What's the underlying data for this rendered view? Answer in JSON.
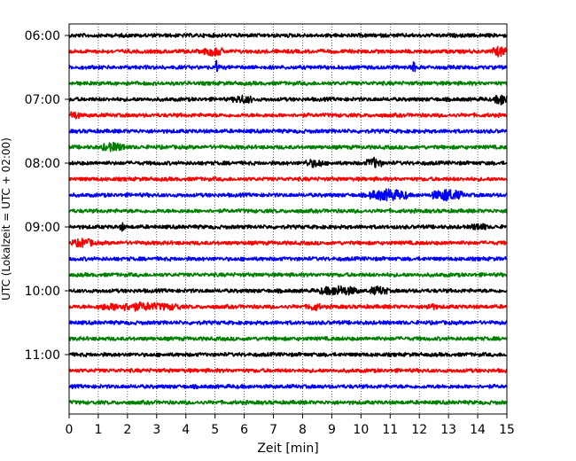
{
  "chart_data": {
    "type": "line",
    "title": "",
    "xlabel": "Zeit  [min]",
    "ylabel": "UTC (Lokalzeit = UTC + 02:00)",
    "xlim": [
      0,
      15
    ],
    "x_ticks": [
      0,
      1,
      2,
      3,
      4,
      5,
      6,
      7,
      8,
      9,
      10,
      11,
      12,
      13,
      14,
      15
    ],
    "y_tick_labels": [
      "06:00",
      "07:00",
      "08:00",
      "09:00",
      "10:00",
      "11:00"
    ],
    "y_tick_rows": [
      0,
      4,
      8,
      12,
      16,
      20
    ],
    "grid": "vertical dotted lines at each minute",
    "trace_colors": [
      "#000000",
      "#ff0000",
      "#0000ff",
      "#008000"
    ],
    "trace_start_times": [
      "06:00",
      "06:15",
      "06:30",
      "06:45",
      "07:00",
      "07:15",
      "07:30",
      "07:45",
      "08:00",
      "08:15",
      "08:30",
      "08:45",
      "09:00",
      "09:15",
      "09:30",
      "09:45",
      "10:00",
      "10:15",
      "10:30",
      "10:45",
      "11:00",
      "11:15",
      "11:30",
      "11:45"
    ],
    "trace_duration_min": 15,
    "events": [
      {
        "row": 1,
        "minute_from": 4.6,
        "minute_to": 5.3,
        "level": 0.35
      },
      {
        "row": 1,
        "minute_from": 14.5,
        "minute_to": 15.0,
        "level": 0.45
      },
      {
        "row": 2,
        "minute_from": 5.0,
        "minute_to": 5.15,
        "level": 0.9
      },
      {
        "row": 2,
        "minute_from": 11.7,
        "minute_to": 11.85,
        "level": 0.6
      },
      {
        "row": 4,
        "minute_from": 5.6,
        "minute_to": 6.3,
        "level": 0.3
      },
      {
        "row": 4,
        "minute_from": 14.6,
        "minute_to": 15.0,
        "level": 0.55
      },
      {
        "row": 5,
        "minute_from": 0.0,
        "minute_to": 0.35,
        "level": 0.3
      },
      {
        "row": 7,
        "minute_from": 1.1,
        "minute_to": 1.9,
        "level": 0.35
      },
      {
        "row": 8,
        "minute_from": 8.1,
        "minute_to": 8.7,
        "level": 0.3
      },
      {
        "row": 8,
        "minute_from": 10.2,
        "minute_to": 10.7,
        "level": 0.45
      },
      {
        "row": 10,
        "minute_from": 10.3,
        "minute_to": 11.6,
        "level": 0.55
      },
      {
        "row": 10,
        "minute_from": 12.4,
        "minute_to": 13.5,
        "level": 0.5
      },
      {
        "row": 10,
        "minute_from": 12.85,
        "minute_to": 12.98,
        "level": 0.85
      },
      {
        "row": 12,
        "minute_from": 1.75,
        "minute_to": 1.9,
        "level": 0.35
      },
      {
        "row": 12,
        "minute_from": 13.8,
        "minute_to": 14.3,
        "level": 0.25
      },
      {
        "row": 13,
        "minute_from": 0.1,
        "minute_to": 0.85,
        "level": 0.35
      },
      {
        "row": 16,
        "minute_from": 8.6,
        "minute_to": 9.9,
        "level": 0.4
      },
      {
        "row": 16,
        "minute_from": 10.3,
        "minute_to": 10.9,
        "level": 0.35
      },
      {
        "row": 17,
        "minute_from": 1.0,
        "minute_to": 3.8,
        "level": 0.3
      },
      {
        "row": 17,
        "minute_from": 8.2,
        "minute_to": 8.6,
        "level": 0.3
      },
      {
        "row": 17,
        "minute_from": 12.2,
        "minute_to": 12.6,
        "level": 0.2
      }
    ]
  }
}
